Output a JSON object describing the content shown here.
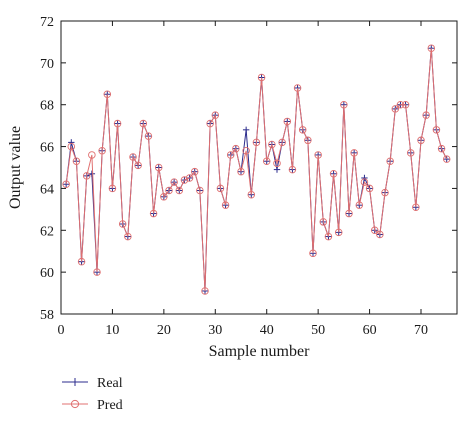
{
  "chart_data": {
    "type": "line",
    "title": "",
    "xlabel": "Sample number",
    "ylabel": "Output value",
    "xlim": [
      0,
      77
    ],
    "ylim": [
      58,
      72
    ],
    "xticks": [
      "0",
      "10",
      "20",
      "30",
      "40",
      "50",
      "60",
      "70"
    ],
    "yticks": [
      "58",
      "60",
      "62",
      "64",
      "66",
      "68",
      "70",
      "72"
    ],
    "grid": false,
    "legend_position": "below-left",
    "x": [
      1,
      2,
      3,
      4,
      5,
      6,
      7,
      8,
      9,
      10,
      11,
      12,
      13,
      14,
      15,
      16,
      17,
      18,
      19,
      20,
      21,
      22,
      23,
      24,
      25,
      26,
      27,
      28,
      29,
      30,
      31,
      32,
      33,
      34,
      35,
      36,
      37,
      38,
      39,
      40,
      41,
      42,
      43,
      44,
      45,
      46,
      47,
      48,
      49,
      50,
      51,
      52,
      53,
      54,
      55,
      56,
      57,
      58,
      59,
      60,
      61,
      62,
      63,
      64,
      65,
      66,
      67,
      68,
      69,
      70,
      71,
      72,
      73,
      74,
      75
    ],
    "series": [
      {
        "name": "Real",
        "color": "#2b2b8c",
        "marker": "plus",
        "values": [
          64.2,
          66.2,
          65.3,
          60.5,
          64.6,
          64.7,
          60.0,
          65.8,
          68.5,
          64.0,
          67.1,
          62.3,
          61.7,
          65.5,
          65.1,
          67.1,
          66.5,
          62.8,
          65.0,
          63.6,
          63.9,
          64.3,
          63.9,
          64.4,
          64.5,
          64.8,
          63.9,
          59.1,
          67.1,
          67.5,
          64.0,
          63.2,
          65.6,
          65.9,
          64.8,
          66.8,
          63.7,
          66.2,
          69.3,
          65.3,
          66.1,
          64.9,
          66.2,
          67.2,
          64.9,
          68.8,
          66.8,
          66.3,
          60.9,
          65.6,
          62.4,
          61.7,
          64.7,
          61.9,
          68.0,
          62.8,
          65.7,
          63.2,
          64.5,
          64.0,
          62.0,
          61.8,
          63.8,
          65.3,
          67.8,
          68.0,
          68.0,
          65.7,
          63.1,
          66.3,
          67.5,
          70.7,
          66.8,
          65.9,
          65.4
        ]
      },
      {
        "name": "Pred",
        "color": "#e07070",
        "marker": "circle",
        "values": [
          64.2,
          66.0,
          65.3,
          60.5,
          64.6,
          65.6,
          60.0,
          65.8,
          68.5,
          64.0,
          67.1,
          62.3,
          61.7,
          65.5,
          65.1,
          67.1,
          66.5,
          62.8,
          65.0,
          63.6,
          63.9,
          64.3,
          63.9,
          64.4,
          64.5,
          64.8,
          63.9,
          59.1,
          67.1,
          67.5,
          64.0,
          63.2,
          65.6,
          65.9,
          64.8,
          65.8,
          63.7,
          66.2,
          69.3,
          65.3,
          66.1,
          65.2,
          66.2,
          67.2,
          64.9,
          68.8,
          66.8,
          66.3,
          60.9,
          65.6,
          62.4,
          61.7,
          64.7,
          61.9,
          68.0,
          62.8,
          65.7,
          63.2,
          64.3,
          64.0,
          62.0,
          61.8,
          63.8,
          65.3,
          67.8,
          68.0,
          68.0,
          65.7,
          63.1,
          66.3,
          67.5,
          70.7,
          66.8,
          65.9,
          65.4
        ]
      }
    ]
  }
}
